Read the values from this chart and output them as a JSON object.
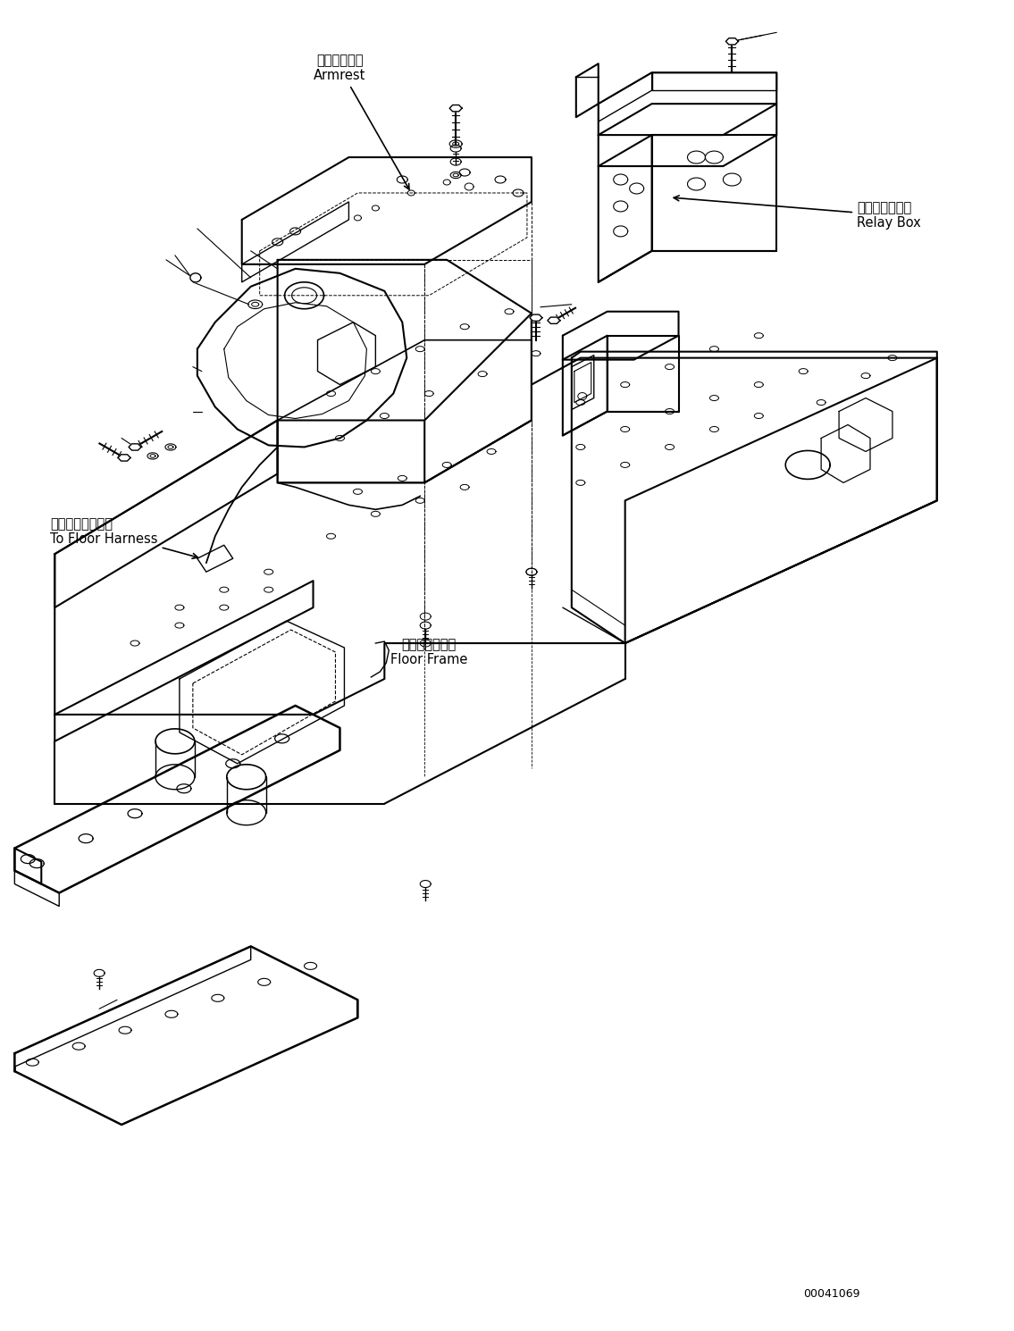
{
  "bg_color": "#ffffff",
  "line_color": "#000000",
  "fig_width": 11.35,
  "fig_height": 14.9,
  "dpi": 100,
  "part_number": "00041069",
  "labels": {
    "armrest_jp": "アームレスト",
    "armrest_en": "Armrest",
    "relay_jp": "リレーボックス",
    "relay_en": "Relay Box",
    "harness_jp": "フロアハーネスへ",
    "harness_en": "To Floor Harness",
    "frame_jp": "フロアフレーム",
    "frame_en": "Floor Frame"
  }
}
